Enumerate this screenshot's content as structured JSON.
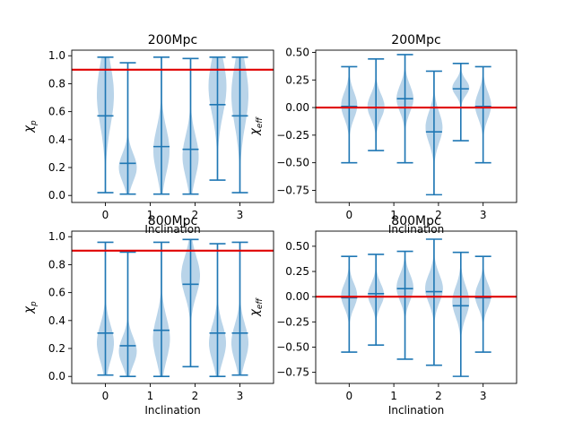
{
  "colors": {
    "violin_fill": "#a8c9e4",
    "violin_line": "#1f77b4",
    "reference_line": "#e00000",
    "axes": "#000000"
  },
  "chart_data": [
    {
      "type": "violin",
      "title": "200Mpc",
      "xlabel": "Inclination",
      "ylabel": "χ_p",
      "ylabel_main": "χ",
      "ylabel_sub": "p",
      "xlim": [
        -0.75,
        3.75
      ],
      "ylim": [
        -0.05,
        1.04
      ],
      "xticks": [
        0,
        1,
        2,
        3
      ],
      "xtick_labels": [
        "0",
        "1",
        "2",
        "3"
      ],
      "yticks": [
        0.0,
        0.2,
        0.4,
        0.6,
        0.8,
        1.0
      ],
      "ytick_labels": [
        "0.0",
        "0.2",
        "0.4",
        "0.6",
        "0.8",
        "1.0"
      ],
      "reference_line": 0.9,
      "violins": [
        {
          "x": 0.0,
          "min": 0.02,
          "mean": 0.57,
          "max": 0.99,
          "peak": 0.72,
          "spread": 0.22,
          "width": 0.38
        },
        {
          "x": 0.5,
          "min": 0.01,
          "mean": 0.23,
          "max": 0.95,
          "peak": 0.2,
          "spread": 0.1,
          "width": 0.4
        },
        {
          "x": 1.25,
          "min": 0.01,
          "mean": 0.35,
          "max": 0.99,
          "peak": 0.32,
          "spread": 0.16,
          "width": 0.36
        },
        {
          "x": 1.9,
          "min": 0.01,
          "mean": 0.33,
          "max": 0.98,
          "peak": 0.28,
          "spread": 0.15,
          "width": 0.36
        },
        {
          "x": 2.5,
          "min": 0.11,
          "mean": 0.65,
          "max": 0.99,
          "peak": 0.78,
          "spread": 0.2,
          "width": 0.4
        },
        {
          "x": 3.0,
          "min": 0.02,
          "mean": 0.57,
          "max": 0.99,
          "peak": 0.72,
          "spread": 0.22,
          "width": 0.38
        }
      ]
    },
    {
      "type": "violin",
      "title": "200Mpc",
      "xlabel": "Inclination",
      "ylabel": "χ_eff",
      "ylabel_main": "χ",
      "ylabel_sub": "eff",
      "xlim": [
        -0.75,
        3.75
      ],
      "ylim": [
        -0.86,
        0.52
      ],
      "xticks": [
        0,
        1,
        2,
        3
      ],
      "xtick_labels": [
        "0",
        "1",
        "2",
        "3"
      ],
      "yticks": [
        -0.75,
        -0.5,
        -0.25,
        0.0,
        0.25,
        0.5
      ],
      "ytick_labels": [
        "−0.75",
        "−0.50",
        "−0.25",
        "0.00",
        "0.25",
        "0.50"
      ],
      "reference_line": 0.0,
      "violins": [
        {
          "x": 0.0,
          "min": -0.5,
          "mean": 0.01,
          "max": 0.37,
          "peak": 0.02,
          "spread": 0.12,
          "width": 0.36
        },
        {
          "x": 0.6,
          "min": -0.39,
          "mean": 0.0,
          "max": 0.44,
          "peak": 0.01,
          "spread": 0.11,
          "width": 0.38
        },
        {
          "x": 1.25,
          "min": -0.5,
          "mean": 0.08,
          "max": 0.48,
          "peak": 0.08,
          "spread": 0.12,
          "width": 0.38
        },
        {
          "x": 1.9,
          "min": -0.79,
          "mean": -0.22,
          "max": 0.33,
          "peak": -0.18,
          "spread": 0.14,
          "width": 0.38
        },
        {
          "x": 2.5,
          "min": -0.3,
          "mean": 0.17,
          "max": 0.4,
          "peak": 0.18,
          "spread": 0.07,
          "width": 0.38
        },
        {
          "x": 3.0,
          "min": -0.5,
          "mean": 0.01,
          "max": 0.37,
          "peak": 0.02,
          "spread": 0.12,
          "width": 0.36
        }
      ]
    },
    {
      "type": "violin",
      "title": "800Mpc",
      "xlabel": "Inclination",
      "ylabel": "χ_p",
      "ylabel_main": "χ",
      "ylabel_sub": "p",
      "xlim": [
        -0.75,
        3.75
      ],
      "ylim": [
        -0.05,
        1.04
      ],
      "xticks": [
        0,
        1,
        2,
        3
      ],
      "xtick_labels": [
        "0",
        "1",
        "2",
        "3"
      ],
      "yticks": [
        0.0,
        0.2,
        0.4,
        0.6,
        0.8,
        1.0
      ],
      "ytick_labels": [
        "0.0",
        "0.2",
        "0.4",
        "0.6",
        "0.8",
        "1.0"
      ],
      "reference_line": 0.9,
      "violins": [
        {
          "x": 0.0,
          "min": 0.01,
          "mean": 0.31,
          "max": 0.96,
          "peak": 0.24,
          "spread": 0.13,
          "width": 0.38
        },
        {
          "x": 0.5,
          "min": 0.0,
          "mean": 0.22,
          "max": 0.89,
          "peak": 0.18,
          "spread": 0.1,
          "width": 0.4
        },
        {
          "x": 1.25,
          "min": 0.0,
          "mean": 0.33,
          "max": 0.96,
          "peak": 0.27,
          "spread": 0.15,
          "width": 0.38
        },
        {
          "x": 1.9,
          "min": 0.07,
          "mean": 0.66,
          "max": 0.98,
          "peak": 0.72,
          "spread": 0.14,
          "width": 0.42
        },
        {
          "x": 2.5,
          "min": 0.0,
          "mean": 0.31,
          "max": 0.95,
          "peak": 0.24,
          "spread": 0.13,
          "width": 0.38
        },
        {
          "x": 3.0,
          "min": 0.01,
          "mean": 0.31,
          "max": 0.96,
          "peak": 0.24,
          "spread": 0.13,
          "width": 0.38
        }
      ]
    },
    {
      "type": "violin",
      "title": "800Mpc",
      "xlabel": "Inclination",
      "ylabel": "χ_eff",
      "ylabel_main": "χ",
      "ylabel_sub": "eff",
      "xlim": [
        -0.75,
        3.75
      ],
      "ylim": [
        -0.86,
        0.65
      ],
      "xticks": [
        0,
        1,
        2,
        3
      ],
      "xtick_labels": [
        "0",
        "1",
        "2",
        "3"
      ],
      "yticks": [
        -0.75,
        -0.5,
        -0.25,
        0.0,
        0.25,
        0.5
      ],
      "ytick_labels": [
        "−0.75",
        "−0.50",
        "−0.25",
        "0.00",
        "0.25",
        "0.50"
      ],
      "reference_line": 0.0,
      "violins": [
        {
          "x": 0.0,
          "min": -0.55,
          "mean": -0.01,
          "max": 0.4,
          "peak": 0.01,
          "spread": 0.12,
          "width": 0.36
        },
        {
          "x": 0.6,
          "min": -0.48,
          "mean": 0.03,
          "max": 0.42,
          "peak": 0.02,
          "spread": 0.11,
          "width": 0.36
        },
        {
          "x": 1.25,
          "min": -0.62,
          "mean": 0.08,
          "max": 0.45,
          "peak": 0.09,
          "spread": 0.13,
          "width": 0.38
        },
        {
          "x": 1.9,
          "min": -0.68,
          "mean": 0.05,
          "max": 0.57,
          "peak": 0.08,
          "spread": 0.14,
          "width": 0.4
        },
        {
          "x": 2.5,
          "min": -0.79,
          "mean": -0.09,
          "max": 0.44,
          "peak": -0.05,
          "spread": 0.15,
          "width": 0.38
        },
        {
          "x": 3.0,
          "min": -0.55,
          "mean": -0.01,
          "max": 0.4,
          "peak": 0.01,
          "spread": 0.12,
          "width": 0.36
        }
      ]
    }
  ]
}
